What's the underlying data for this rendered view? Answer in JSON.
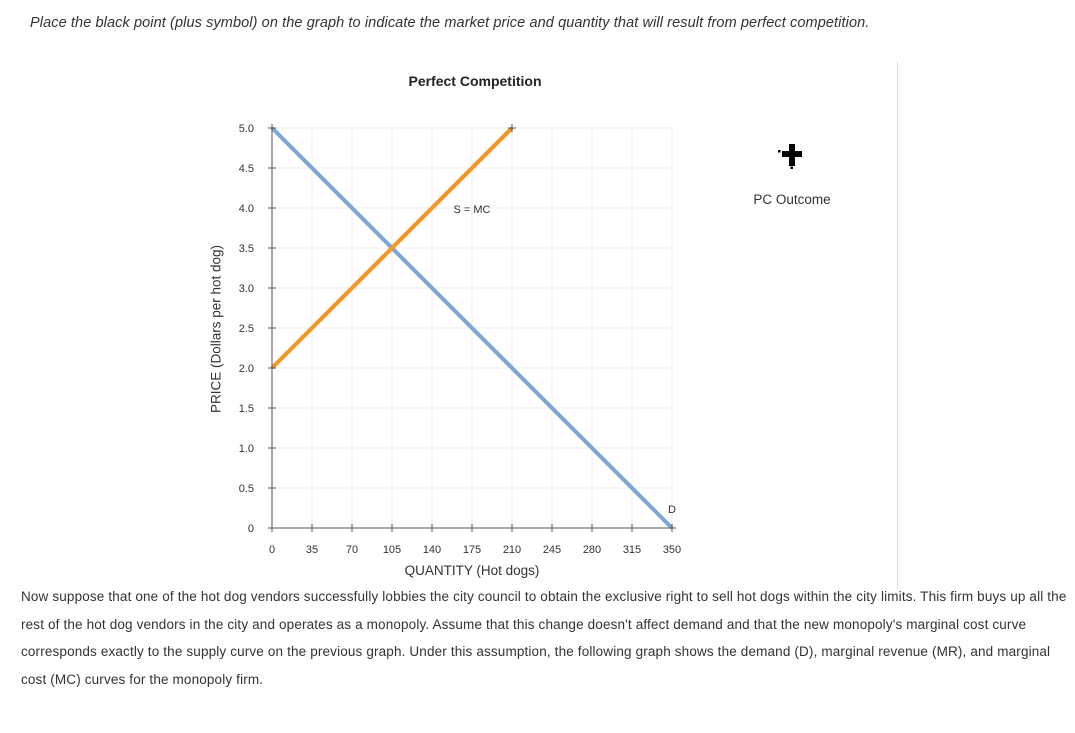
{
  "instruction": "Place the black point (plus symbol) on the graph to indicate the market price and quantity that will result from perfect competition.",
  "chart_data": {
    "type": "line",
    "title": "Perfect Competition",
    "xlabel": "QUANTITY (Hot dogs)",
    "ylabel": "PRICE (Dollars per hot dog)",
    "xlim": [
      0,
      350
    ],
    "ylim": [
      0,
      5
    ],
    "x_ticks": [
      "0",
      "35",
      "70",
      "105",
      "140",
      "175",
      "210",
      "245",
      "280",
      "315",
      "350"
    ],
    "y_ticks": [
      "0",
      "0.5",
      "1.0",
      "1.5",
      "2.0",
      "2.5",
      "3.0",
      "3.5",
      "4.0",
      "4.5",
      "5.0"
    ],
    "grid": true,
    "series": [
      {
        "name": "D",
        "color": "#7ba7d9",
        "points": [
          [
            0,
            5.0
          ],
          [
            350,
            0
          ]
        ],
        "label_point": [
          350,
          0.25
        ]
      },
      {
        "name": "S = MC",
        "color": "#f7941d",
        "points": [
          [
            0,
            2.0
          ],
          [
            210,
            5.0
          ]
        ],
        "label_point": [
          175,
          4.0
        ]
      }
    ]
  },
  "tool": {
    "label": "PC Outcome",
    "icon": "plus-icon",
    "color": "#000000"
  },
  "paragraph": "Now suppose that one of the hot dog vendors successfully lobbies the city council to obtain the exclusive right to sell hot dogs within the city limits. This firm buys up all the rest of the hot dog vendors in the city and operates as a monopoly. Assume that this change doesn't affect demand and that the new monopoly's marginal cost curve corresponds exactly to the supply curve on the previous graph. Under this assumption, the following graph shows the demand (D), marginal revenue (MR), and marginal cost (MC) curves for the monopoly firm."
}
